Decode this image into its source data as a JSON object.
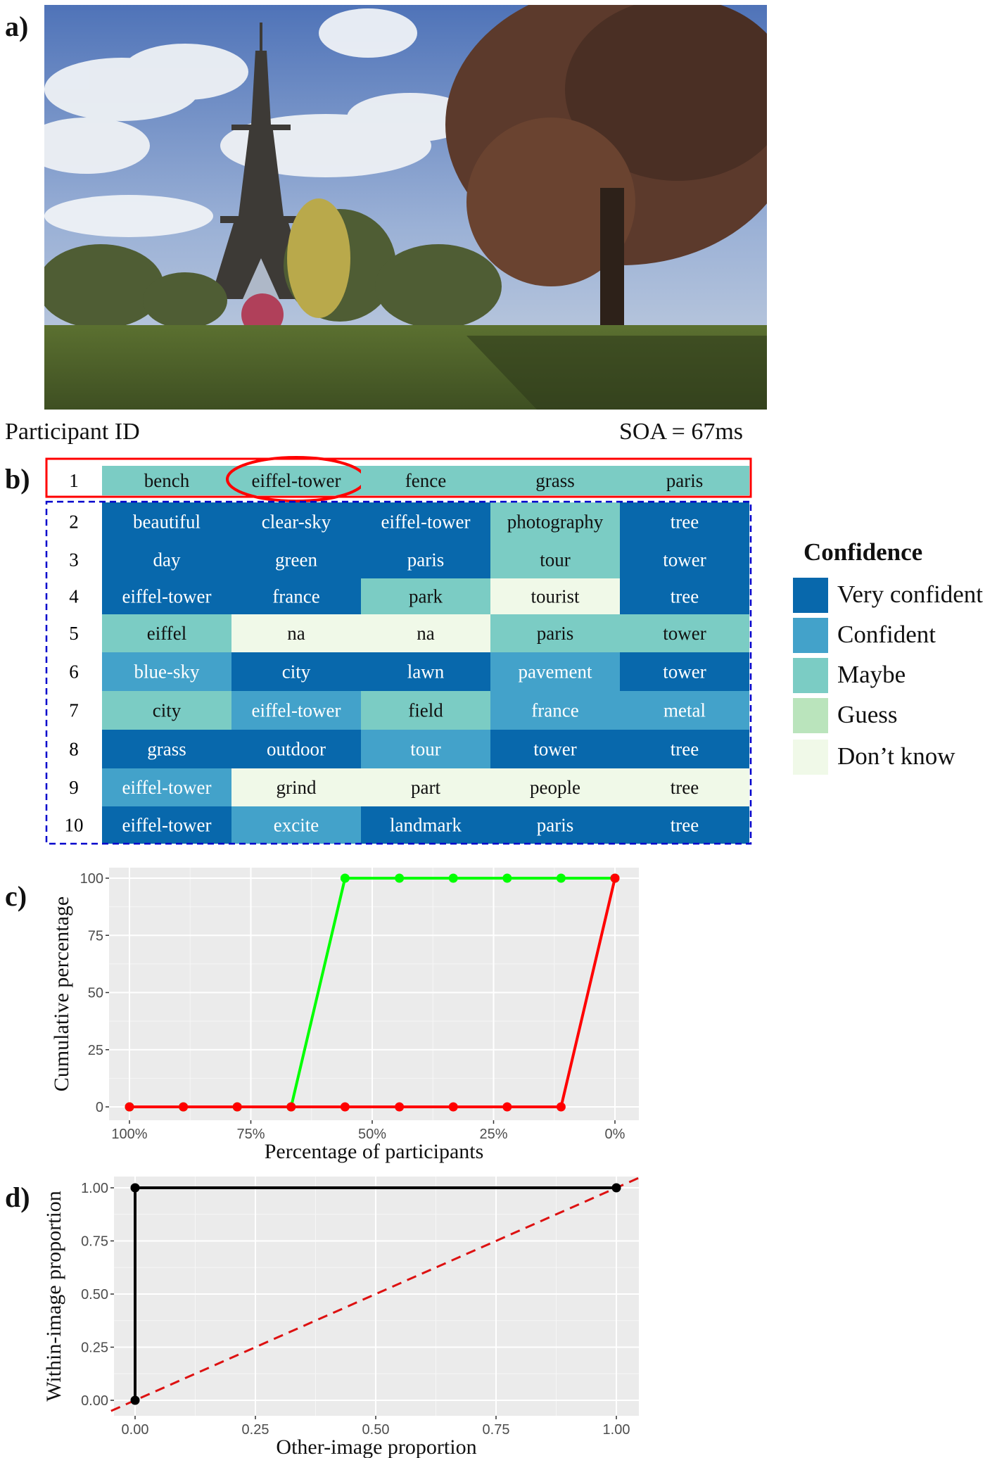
{
  "panel_labels": {
    "a": "a)",
    "b": "b)",
    "c": "c)",
    "d": "d)"
  },
  "photo": {
    "alt": "Eiffel Tower seen from a park"
  },
  "header": {
    "participant_label": "Participant ID",
    "soa_label": "SOA = 67ms"
  },
  "table": {
    "rows": [
      {
        "id": "1",
        "cells": [
          {
            "word": "bench",
            "level": "maybe"
          },
          {
            "word": "eiffel-tower",
            "level": "maybe",
            "circled": true
          },
          {
            "word": "fence",
            "level": "maybe"
          },
          {
            "word": "grass",
            "level": "maybe"
          },
          {
            "word": "paris",
            "level": "maybe"
          }
        ]
      },
      {
        "id": "2",
        "cells": [
          {
            "word": "beautiful",
            "level": "very"
          },
          {
            "word": "clear-sky",
            "level": "very"
          },
          {
            "word": "eiffel-tower",
            "level": "very"
          },
          {
            "word": "photography",
            "level": "maybe"
          },
          {
            "word": "tree",
            "level": "very"
          }
        ]
      },
      {
        "id": "3",
        "cells": [
          {
            "word": "day",
            "level": "very"
          },
          {
            "word": "green",
            "level": "very"
          },
          {
            "word": "paris",
            "level": "very"
          },
          {
            "word": "tour",
            "level": "maybe"
          },
          {
            "word": "tower",
            "level": "very"
          }
        ]
      },
      {
        "id": "4",
        "cells": [
          {
            "word": "eiffel-tower",
            "level": "very"
          },
          {
            "word": "france",
            "level": "very"
          },
          {
            "word": "park",
            "level": "maybe"
          },
          {
            "word": "tourist",
            "level": "dontknow"
          },
          {
            "word": "tree",
            "level": "very"
          }
        ]
      },
      {
        "id": "5",
        "cells": [
          {
            "word": "eiffel",
            "level": "maybe"
          },
          {
            "word": "na",
            "level": "dontknow"
          },
          {
            "word": "na",
            "level": "dontknow"
          },
          {
            "word": "paris",
            "level": "maybe"
          },
          {
            "word": "tower",
            "level": "maybe"
          }
        ]
      },
      {
        "id": "6",
        "cells": [
          {
            "word": "blue-sky",
            "level": "confident"
          },
          {
            "word": "city",
            "level": "very"
          },
          {
            "word": "lawn",
            "level": "very"
          },
          {
            "word": "pavement",
            "level": "confident"
          },
          {
            "word": "tower",
            "level": "very"
          }
        ]
      },
      {
        "id": "7",
        "cells": [
          {
            "word": "city",
            "level": "maybe"
          },
          {
            "word": "eiffel-tower",
            "level": "confident"
          },
          {
            "word": "field",
            "level": "maybe"
          },
          {
            "word": "france",
            "level": "confident"
          },
          {
            "word": "metal",
            "level": "confident"
          }
        ]
      },
      {
        "id": "8",
        "cells": [
          {
            "word": "grass",
            "level": "very"
          },
          {
            "word": "outdoor",
            "level": "very"
          },
          {
            "word": "tour",
            "level": "confident"
          },
          {
            "word": "tower",
            "level": "very"
          },
          {
            "word": "tree",
            "level": "very"
          }
        ]
      },
      {
        "id": "9",
        "cells": [
          {
            "word": "eiffel-tower",
            "level": "confident"
          },
          {
            "word": "grind",
            "level": "dontknow"
          },
          {
            "word": "part",
            "level": "dontknow"
          },
          {
            "word": "people",
            "level": "dontknow"
          },
          {
            "word": "tree",
            "level": "dontknow"
          }
        ]
      },
      {
        "id": "10",
        "cells": [
          {
            "word": "eiffel-tower",
            "level": "very"
          },
          {
            "word": "excite",
            "level": "confident"
          },
          {
            "word": "landmark",
            "level": "very"
          },
          {
            "word": "paris",
            "level": "very"
          },
          {
            "word": "tree",
            "level": "very"
          }
        ]
      }
    ]
  },
  "legend": {
    "title": "Confidence",
    "items": [
      {
        "key": "very",
        "label": "Very confident",
        "color": "#0868ac"
      },
      {
        "key": "confident",
        "label": "Confident",
        "color": "#43a2ca"
      },
      {
        "key": "maybe",
        "label": "Maybe",
        "color": "#7bccc4"
      },
      {
        "key": "guess",
        "label": "Guess",
        "color": "#bae4bc"
      },
      {
        "key": "dontknow",
        "label": "Don’t know",
        "color": "#f0f9e8"
      }
    ]
  },
  "colors": {
    "highlight_box": "#ff0000",
    "group_box": "#0000cc",
    "panel_bg": "#ebebeb",
    "green_line": "#00ff00",
    "red_line": "#ff0000",
    "black_line": "#000000"
  },
  "chart_data": [
    {
      "type": "line",
      "xlabel": "Percentage of participants",
      "ylabel": "Cumulative percentage",
      "x_tick_labels": [
        "100%",
        "75%",
        "50%",
        "25%",
        "0%"
      ],
      "y_tick_labels": [
        "0",
        "25",
        "50",
        "75",
        "100"
      ],
      "x_reversed": true,
      "xlim": [
        100,
        0
      ],
      "ylim": [
        0,
        100
      ],
      "grid": true,
      "series": [
        {
          "color": "#00ff00",
          "x": [
            100,
            88.9,
            77.8,
            66.7,
            55.6,
            44.4,
            33.3,
            22.2,
            11.1,
            0
          ],
          "y": [
            0,
            0,
            0,
            0,
            100,
            100,
            100,
            100,
            100,
            100
          ]
        },
        {
          "color": "#ff0000",
          "x": [
            100,
            88.9,
            77.8,
            66.7,
            55.6,
            44.4,
            33.3,
            22.2,
            11.1,
            0
          ],
          "y": [
            0,
            0,
            0,
            0,
            0,
            0,
            0,
            0,
            0,
            100
          ]
        }
      ]
    },
    {
      "type": "line",
      "xlabel": "Other-image proportion",
      "ylabel": "Within-image proportion",
      "x_tick_labels": [
        "0.00",
        "0.25",
        "0.50",
        "0.75",
        "1.00"
      ],
      "y_tick_labels": [
        "0.00",
        "0.25",
        "0.50",
        "0.75",
        "1.00"
      ],
      "xlim": [
        0,
        1
      ],
      "ylim": [
        0,
        1
      ],
      "grid": true,
      "series": [
        {
          "color": "#000000",
          "x": [
            0,
            0,
            1
          ],
          "y": [
            0,
            1,
            1
          ]
        }
      ],
      "reference_line": {
        "color": "#dd1111",
        "style": "dashed",
        "x": [
          0,
          1
        ],
        "y": [
          0,
          1
        ]
      }
    }
  ]
}
